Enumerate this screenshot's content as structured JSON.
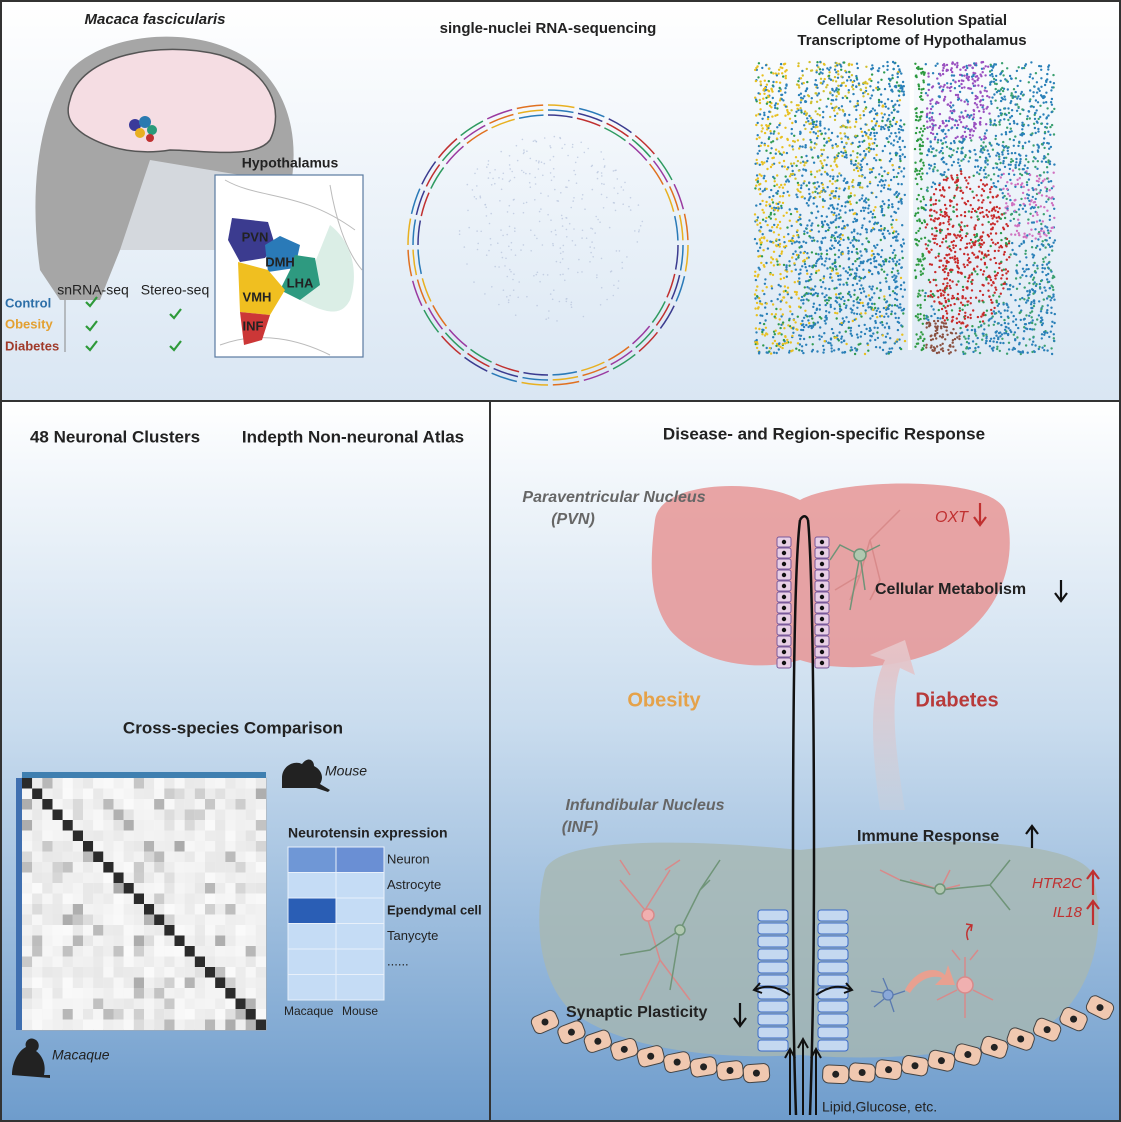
{
  "top": {
    "species": "Macaca fascicularis",
    "inset_title": "Hypothalamus",
    "regions": [
      "PVN",
      "DMH",
      "LHA",
      "VMH",
      "INF"
    ],
    "methods": [
      "snRNA-seq",
      "Stereo-seq"
    ],
    "conditions": [
      "Control",
      "Obesity",
      "Diabetes"
    ],
    "snrna_title": "single-nuclei RNA-sequencing",
    "spatial_title": [
      "Cellular Resolution Spatial",
      "Transcriptome of Hypothalamus"
    ]
  },
  "atlas": {
    "neuronal_title": "48 Neuronal Clusters",
    "non_neuronal_title": "Indepth Non-neuronal Atlas"
  },
  "comparison": {
    "title": "Cross-species Comparison",
    "species_top": "Mouse",
    "species_left": "Macaque",
    "expression": {
      "title": "Neurotensin expression",
      "rows": [
        "Neuron",
        "Astrocyte",
        "Ependymal cell",
        "Tanycyte",
        "......"
      ],
      "columns": [
        "Macaque",
        "Mouse"
      ]
    }
  },
  "response": {
    "title": "Disease- and Region-specific Response",
    "pvn": [
      "Paraventricular Nucleus",
      "(PVN)"
    ],
    "inf": [
      "Infundibular Nucleus",
      "(INF)"
    ],
    "obesity": "Obesity",
    "diabetes": "Diabetes",
    "pvn_genes": [
      "OXT"
    ],
    "pvn_effect": "Cellular Metabolism",
    "inf_effects": [
      "Immune Response",
      "Synaptic Plasticity"
    ],
    "inf_genes": [
      "HTR2C",
      "IL18"
    ],
    "inputs": "Lipid,Glucose, etc."
  }
}
